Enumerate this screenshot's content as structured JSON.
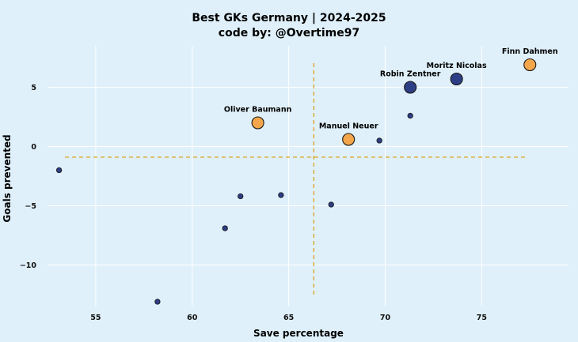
{
  "chart_data": {
    "type": "scatter",
    "title": "Best GKs Germany | 2024-2025",
    "subtitle": "code by: @Overtime97",
    "xlabel": "Save percentage",
    "ylabel": "Goals prevented",
    "xlim": [
      52.5,
      79.5
    ],
    "ylim": [
      -13.5,
      8.5
    ],
    "xticks": [
      55,
      60,
      65,
      70,
      75
    ],
    "yticks": [
      5,
      0,
      -5,
      -10
    ],
    "ytick_labels": [
      "5",
      "0",
      "−5",
      "−10"
    ],
    "grid": true,
    "reference_lines": {
      "x_mean": 66.3,
      "y_mean": -0.9
    },
    "colors": {
      "background": "#dff0fa",
      "highlight": "#f4a64a",
      "default": "#2c3e86",
      "marker_edge": "#1a1a1a",
      "mean_line": "#d9a520",
      "grid": "#ffffff"
    },
    "points": [
      {
        "x": 77.5,
        "y": 6.9,
        "label": "Finn Dahmen",
        "highlight": true,
        "size": "large"
      },
      {
        "x": 73.7,
        "y": 5.7,
        "label": "Moritz Nicolas",
        "highlight": false,
        "size": "large"
      },
      {
        "x": 71.3,
        "y": 5.0,
        "label": "Robin Zentner",
        "highlight": false,
        "size": "large"
      },
      {
        "x": 63.4,
        "y": 2.0,
        "label": "Oliver Baumann",
        "highlight": true,
        "size": "large"
      },
      {
        "x": 68.1,
        "y": 0.6,
        "label": "Manuel Neuer",
        "highlight": true,
        "size": "large"
      },
      {
        "x": 71.3,
        "y": 2.6,
        "label": "",
        "highlight": false,
        "size": "small"
      },
      {
        "x": 69.7,
        "y": 0.5,
        "label": "",
        "highlight": false,
        "size": "small"
      },
      {
        "x": 53.1,
        "y": -2.0,
        "label": "",
        "highlight": false,
        "size": "small"
      },
      {
        "x": 62.5,
        "y": -4.2,
        "label": "",
        "highlight": false,
        "size": "small"
      },
      {
        "x": 64.6,
        "y": -4.1,
        "label": "",
        "highlight": false,
        "size": "small"
      },
      {
        "x": 67.2,
        "y": -4.9,
        "label": "",
        "highlight": false,
        "size": "small"
      },
      {
        "x": 61.7,
        "y": -6.9,
        "label": "",
        "highlight": false,
        "size": "small"
      },
      {
        "x": 58.2,
        "y": -13.1,
        "label": "",
        "highlight": false,
        "size": "small"
      }
    ]
  }
}
